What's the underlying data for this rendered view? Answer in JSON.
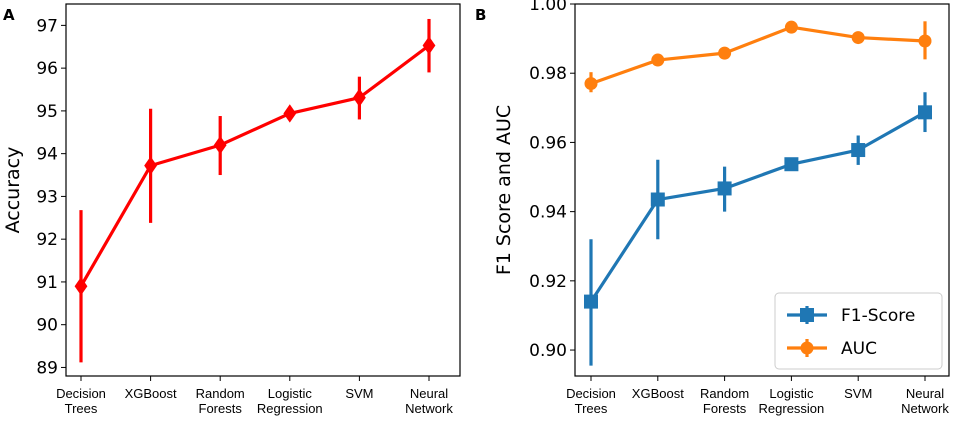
{
  "chart_data": [
    {
      "panel": "A",
      "type": "line",
      "categories": [
        [
          "Decision",
          "Trees"
        ],
        [
          "XGBoost"
        ],
        [
          "Random",
          "Forests"
        ],
        [
          "Logistic",
          "Regression"
        ],
        [
          "SVM"
        ],
        [
          "Neural",
          "Network"
        ]
      ],
      "series": [
        {
          "name": "Accuracy",
          "color": "#ff0000",
          "marker": "diamond",
          "values": [
            90.9,
            93.72,
            94.2,
            94.94,
            95.31,
            96.53
          ],
          "err_low": [
            89.12,
            92.38,
            93.5,
            94.8,
            94.8,
            95.9
          ],
          "err_high": [
            92.68,
            95.05,
            94.88,
            95.1,
            95.8,
            97.15
          ]
        }
      ],
      "ylabel": "Accuracy",
      "ylim": [
        88.8,
        97.5
      ],
      "yticks": [
        89,
        90,
        91,
        92,
        93,
        94,
        95,
        96,
        97
      ]
    },
    {
      "panel": "B",
      "type": "line",
      "categories": [
        [
          "Decision",
          "Trees"
        ],
        [
          "XGBoost"
        ],
        [
          "Random",
          "Forests"
        ],
        [
          "Logistic",
          "Regression"
        ],
        [
          "SVM"
        ],
        [
          "Neural",
          "Network"
        ]
      ],
      "series": [
        {
          "name": "F1-Score",
          "color": "#1f77b4",
          "marker": "square",
          "values": [
            0.914,
            0.9435,
            0.9467,
            0.9537,
            0.9578,
            0.9687
          ],
          "err_low": [
            0.8955,
            0.932,
            0.94,
            0.9525,
            0.9535,
            0.963
          ],
          "err_high": [
            0.932,
            0.955,
            0.953,
            0.955,
            0.962,
            0.9745
          ]
        },
        {
          "name": "AUC",
          "color": "#ff7f0e",
          "marker": "circle",
          "values": [
            0.977,
            0.9838,
            0.9858,
            0.9933,
            0.9903,
            0.9893
          ],
          "err_low": [
            0.9745,
            0.9832,
            0.9852,
            0.9928,
            0.9898,
            0.984
          ],
          "err_high": [
            0.9803,
            0.9844,
            0.9864,
            0.9938,
            0.9908,
            0.995
          ]
        }
      ],
      "ylabel": "F1 Score and AUC",
      "ylim": [
        0.8925,
        1.0
      ],
      "yticks": [
        "0.90",
        "0.92",
        "0.94",
        "0.96",
        "0.98",
        "1.00"
      ],
      "legend": "lower-right"
    }
  ]
}
